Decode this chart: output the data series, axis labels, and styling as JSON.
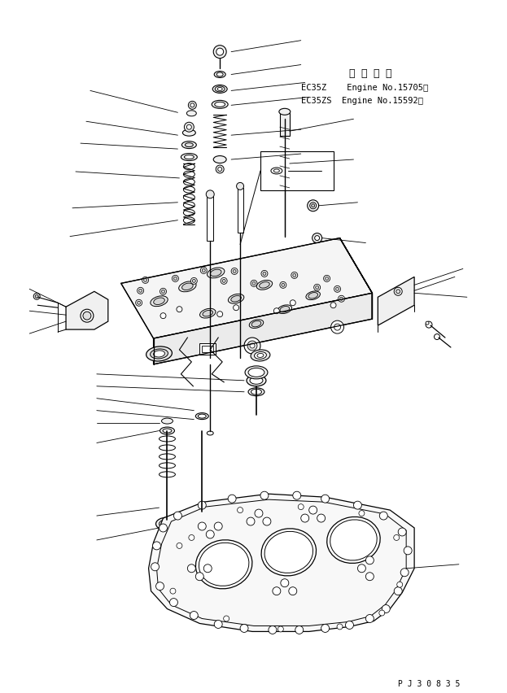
{
  "background_color": "#ffffff",
  "line_color": "#000000",
  "info_line1": "適 用 号 機",
  "info_line2": "EC35Z    Engine No.15705～",
  "info_line3": "EC35ZS  Engine No.15592～",
  "part_number": "P J 3 0 8 3 5",
  "fig_width": 6.23,
  "fig_height": 8.52,
  "dpi": 100
}
